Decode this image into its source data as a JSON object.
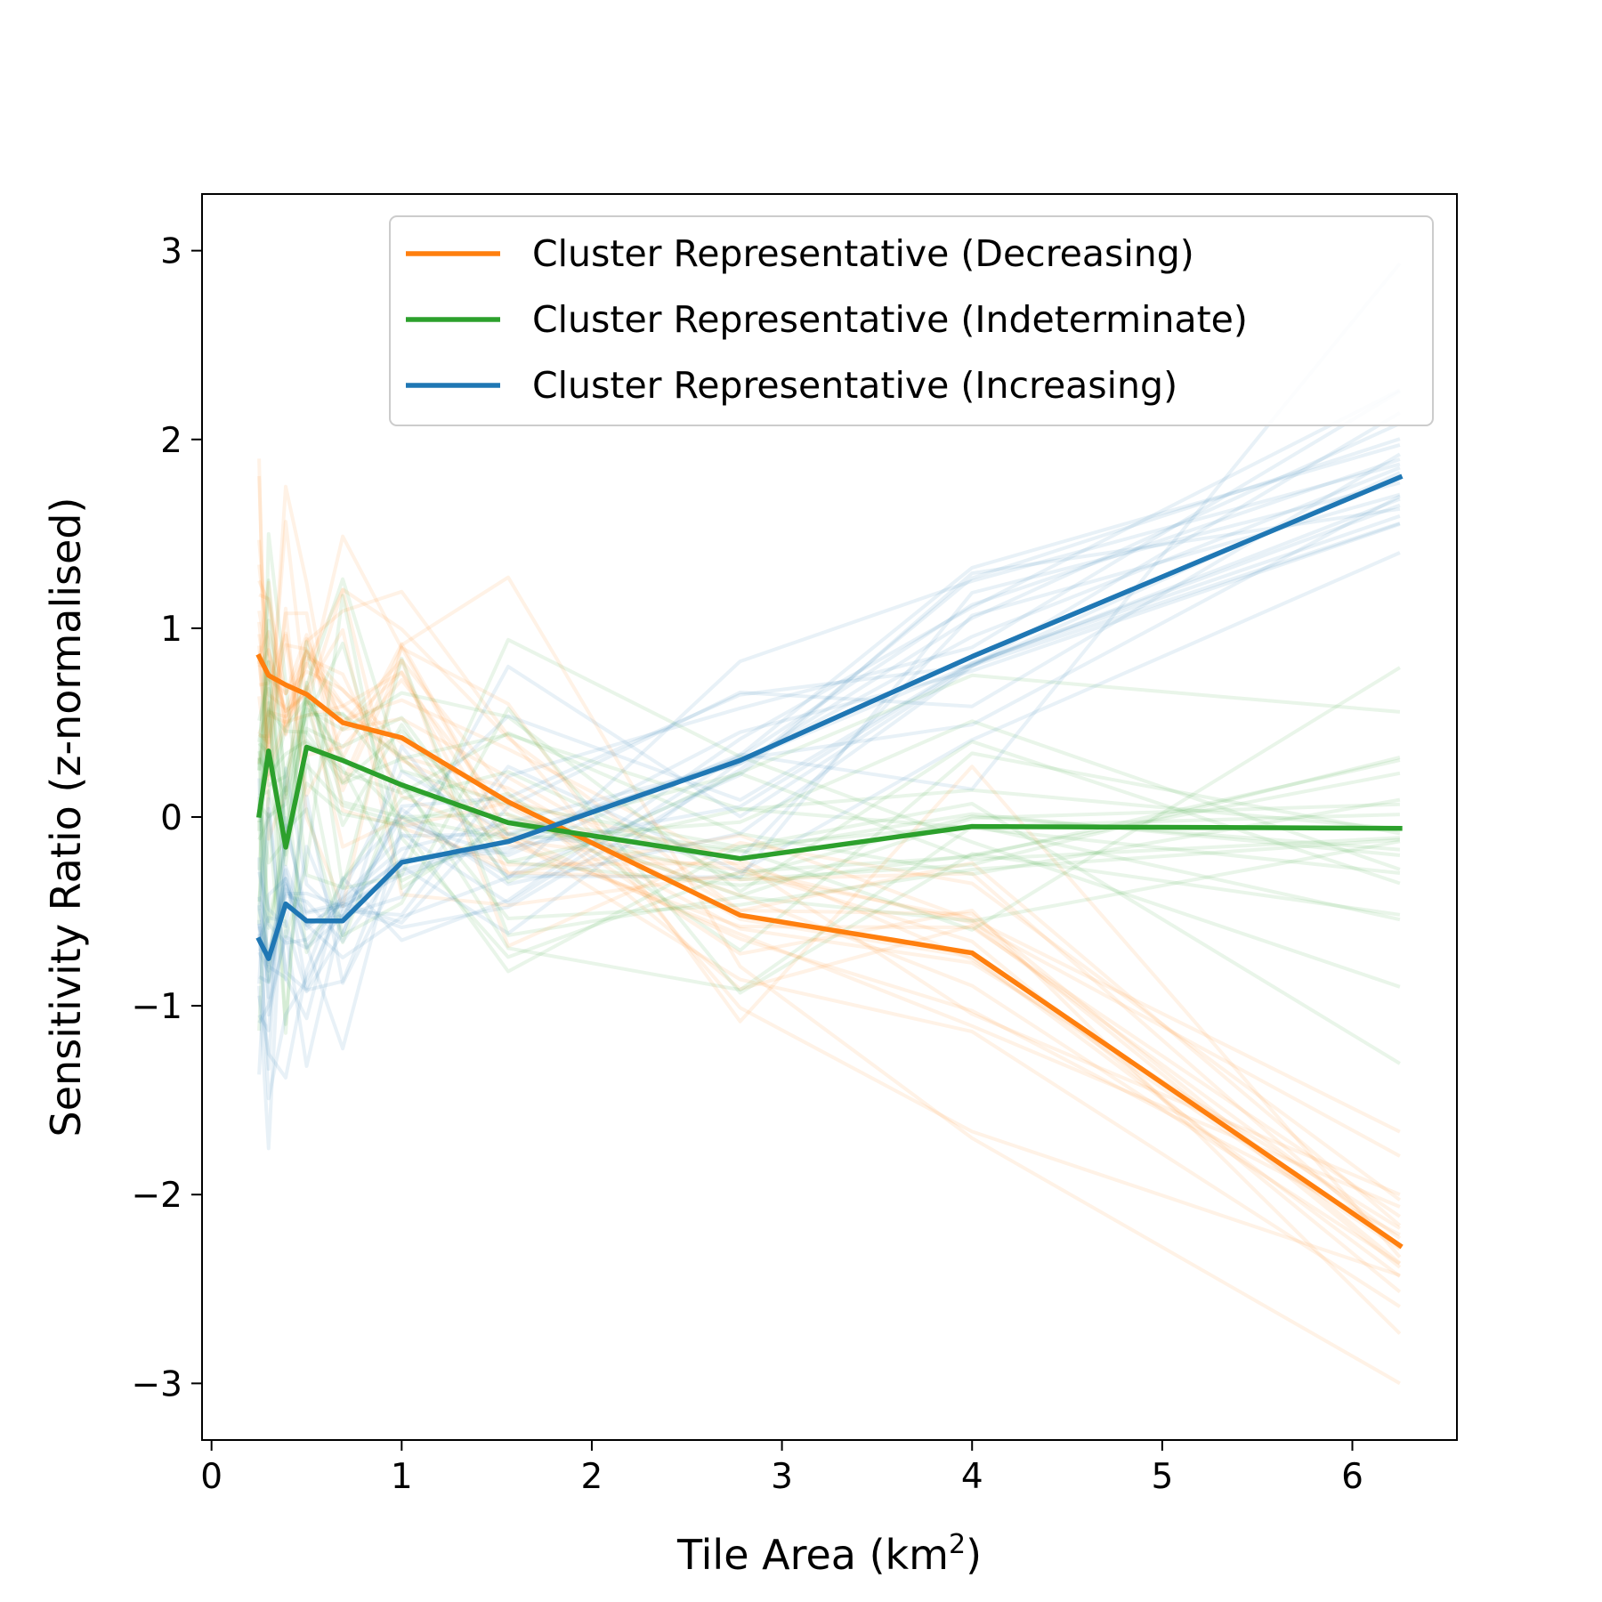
{
  "chart_data": {
    "type": "line",
    "title": "",
    "xlabel": "Tile Area (km",
    "xlabel_sup": "2",
    "xlabel_end": ")",
    "ylabel": "Sensitivity Ratio (z-normalised)",
    "xlim": [
      -0.05,
      6.55
    ],
    "ylim": [
      -3.3,
      3.3
    ],
    "xticks": [
      0,
      1,
      2,
      3,
      4,
      5,
      6
    ],
    "xtick_labels": [
      "0",
      "1",
      "2",
      "3",
      "4",
      "5",
      "6"
    ],
    "yticks": [
      -3,
      -2,
      -1,
      0,
      1,
      2,
      3
    ],
    "ytick_labels": [
      "−3",
      "−2",
      "−1",
      "0",
      "1",
      "2",
      "3"
    ],
    "grid": false,
    "legend_position": "top-right",
    "x": [
      0.25,
      0.3,
      0.39,
      0.5,
      0.69,
      1.0,
      1.56,
      2.78,
      4.0,
      6.25
    ],
    "series": [
      {
        "name": "Cluster Representative (Decreasing)",
        "color": "#ff7f0e",
        "values": [
          0.85,
          0.75,
          0.7,
          0.65,
          0.5,
          0.42,
          0.08,
          -0.52,
          -0.72,
          -2.27
        ]
      },
      {
        "name": "Cluster Representative (Indeterminate)",
        "color": "#2ca02c",
        "values": [
          0.01,
          0.35,
          -0.16,
          0.37,
          0.3,
          0.17,
          -0.03,
          -0.22,
          -0.05,
          -0.06
        ]
      },
      {
        "name": "Cluster Representative (Increasing)",
        "color": "#1f77b4",
        "values": [
          -0.65,
          -0.75,
          -0.46,
          -0.55,
          -0.55,
          -0.24,
          -0.13,
          0.3,
          0.85,
          1.8
        ]
      }
    ],
    "background_series_opacity": 0.1
  }
}
